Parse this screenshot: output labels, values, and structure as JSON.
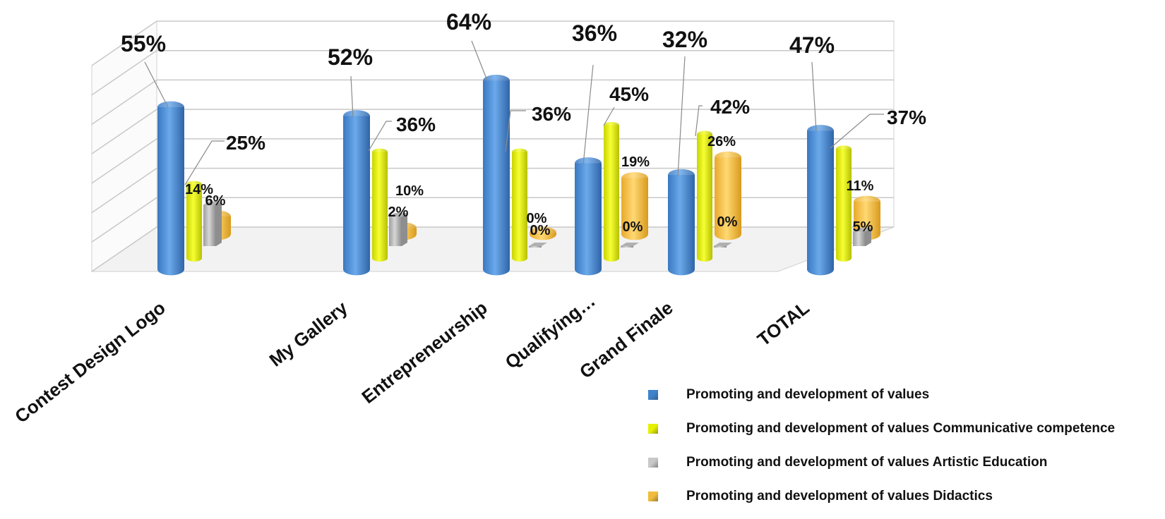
{
  "chart_data": {
    "type": "bar",
    "categories": [
      "Contest Design Logo",
      "My Gallery",
      "Entrepreneurship",
      "Qualifying…",
      "Grand Finale",
      "TOTAL"
    ],
    "series": [
      {
        "name": "Promoting and development of values",
        "color": "#4a8fd8",
        "values": [
          55,
          52,
          64,
          36,
          32,
          47
        ],
        "labels": [
          "55%",
          "52%",
          "64%",
          "36%",
          "32%",
          "47%"
        ]
      },
      {
        "name": "Promoting and development of values Communicative competence",
        "color": "#e6f000",
        "values": [
          25,
          36,
          36,
          45,
          42,
          37
        ],
        "labels": [
          "25%",
          "36%",
          "36%",
          "45%",
          "42%",
          "37%"
        ]
      },
      {
        "name": "Promoting and development of values Artistic Education",
        "color": "#c8c8c8",
        "values": [
          14,
          10,
          0,
          0,
          0,
          5
        ],
        "labels": [
          "14%",
          "10%",
          "0%",
          "0%",
          "0%",
          "5%"
        ]
      },
      {
        "name": "Promoting and development of values Didactics",
        "color": "#f5c542",
        "values": [
          6,
          2,
          0,
          19,
          26,
          11
        ],
        "labels": [
          "6%",
          "2%",
          "0%",
          "19%",
          "26%",
          "11%"
        ]
      }
    ],
    "ylim": [
      0,
      70
    ],
    "grid": true,
    "legend": "bottom-right",
    "title": "",
    "xlabel": "",
    "ylabel": ""
  }
}
